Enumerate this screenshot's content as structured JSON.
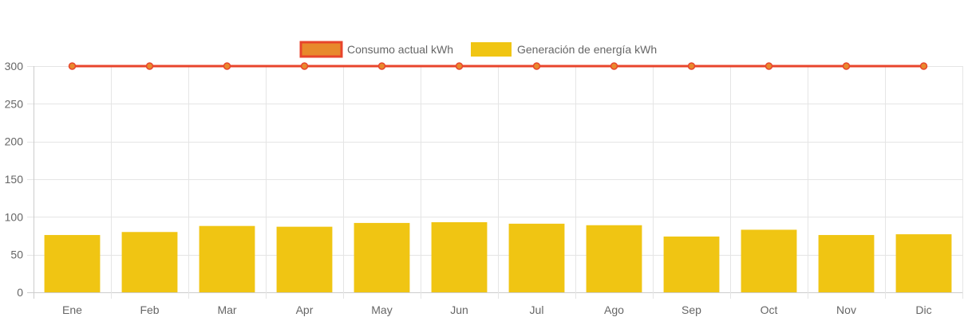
{
  "chart_data": {
    "type": "bar",
    "categories": [
      "Ene",
      "Feb",
      "Mar",
      "Apr",
      "May",
      "Jun",
      "Jul",
      "Ago",
      "Sep",
      "Oct",
      "Nov",
      "Dic"
    ],
    "series": [
      {
        "name": "Consumo actual kWh",
        "type": "line",
        "values": [
          300,
          300,
          300,
          300,
          300,
          300,
          300,
          300,
          300,
          300,
          300,
          300
        ],
        "color": "#e8452c",
        "fill_color": "#e8892c"
      },
      {
        "name": "Generación de energía kWh",
        "type": "bar",
        "values": [
          76,
          80,
          88,
          87,
          92,
          93,
          91,
          89,
          74,
          83,
          76,
          77
        ],
        "color": "#f0c513"
      }
    ],
    "ylim": [
      0,
      300
    ],
    "yticks": [
      0,
      50,
      100,
      150,
      200,
      250,
      300
    ],
    "grid": true,
    "legend_position": "top"
  }
}
